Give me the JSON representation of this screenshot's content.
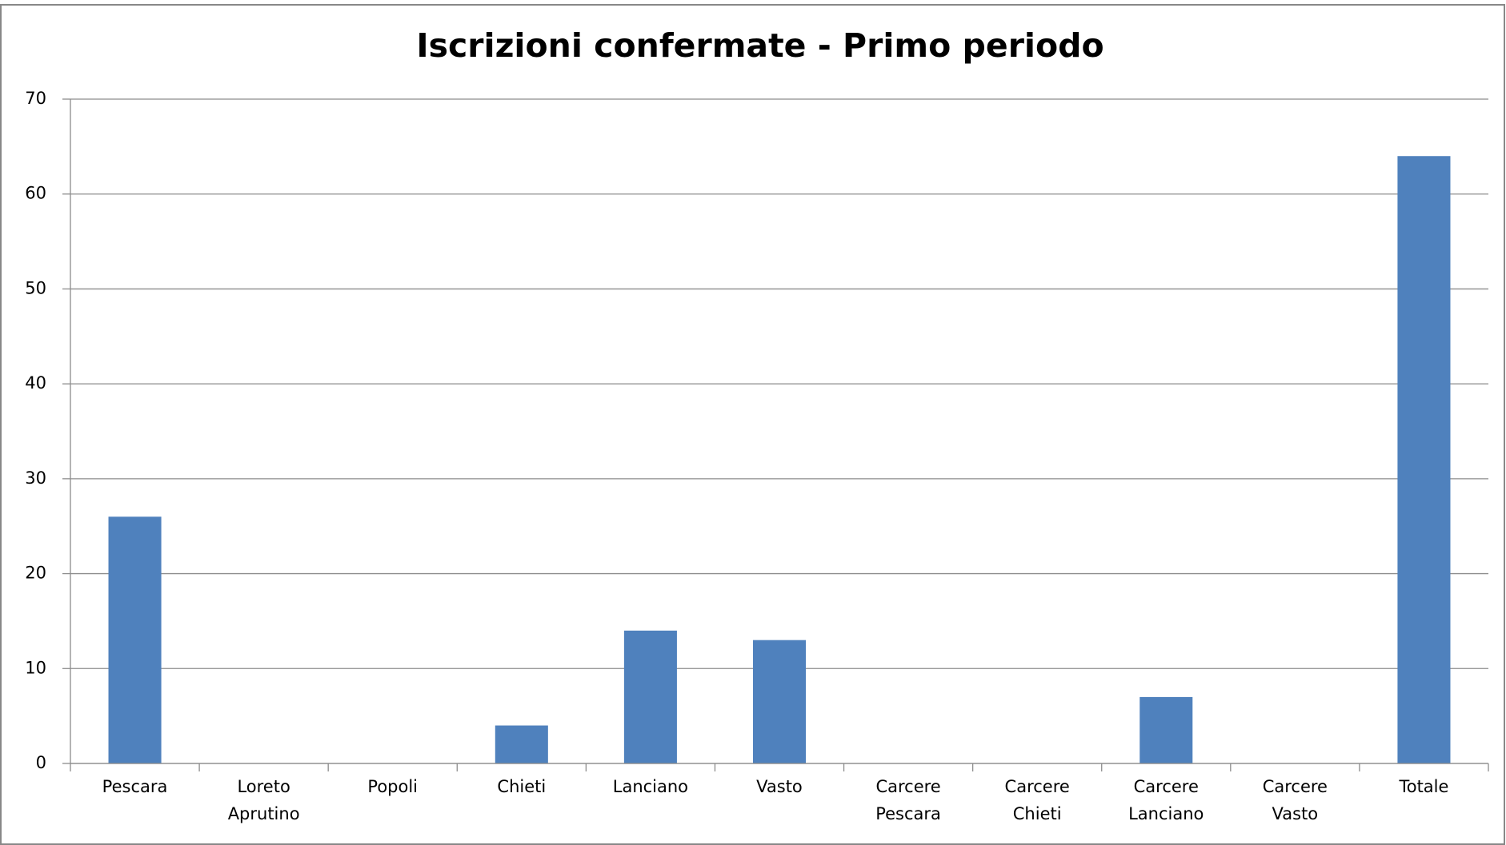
{
  "chart_data": {
    "type": "bar",
    "title": "Iscrizioni confermate - Primo periodo",
    "categories": [
      "Pescara",
      "Loreto Aprutino",
      "Popoli",
      "Chieti",
      "Lanciano",
      "Vasto",
      "Carcere Pescara",
      "Carcere Chieti",
      "Carcere Lanciano",
      "Carcere Vasto",
      "Totale"
    ],
    "values": [
      26,
      0,
      0,
      4,
      14,
      13,
      0,
      0,
      7,
      0,
      64
    ],
    "color": "#4f81bd",
    "ylim": [
      0,
      70
    ],
    "yticks": [
      0,
      10,
      20,
      30,
      40,
      50,
      60,
      70
    ],
    "grid": true
  }
}
